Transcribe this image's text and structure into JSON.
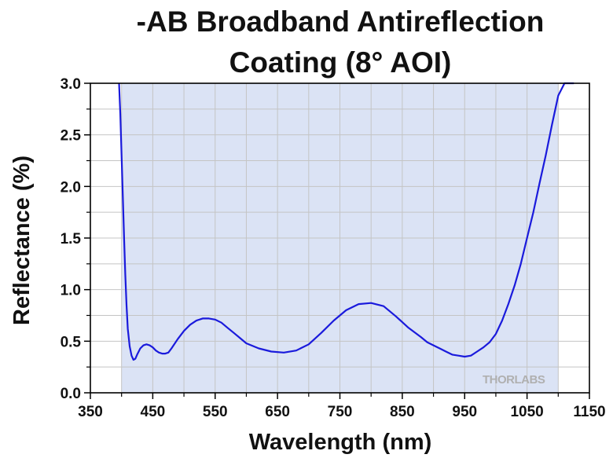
{
  "chart_data": {
    "type": "line",
    "title_lines": [
      "-AB Broadband Antireflection",
      "Coating (8° AOI)"
    ],
    "xlabel": "Wavelength (nm)",
    "ylabel": "Reflectance (%)",
    "xlim": [
      350,
      1150
    ],
    "ylim": [
      0.0,
      3.0
    ],
    "x_ticks": [
      "350",
      "450",
      "550",
      "650",
      "750",
      "850",
      "950",
      "1050",
      "1150"
    ],
    "y_ticks": [
      "0.0",
      "0.5",
      "1.0",
      "1.5",
      "2.0",
      "2.5",
      "3.0"
    ],
    "grid": true,
    "shaded_band": [
      400,
      1100
    ],
    "colors": {
      "line": "#1a1adc",
      "band": "#dbe3f5",
      "grid": "#c4c4c4"
    },
    "watermark": "THORLABS",
    "series": [
      {
        "x": [
          396,
          398,
          400,
          402,
          404,
          406,
          408,
          410,
          413,
          416,
          419,
          422,
          425,
          430,
          435,
          440,
          445,
          450,
          455,
          460,
          465,
          470,
          475,
          480,
          490,
          500,
          510,
          520,
          530,
          540,
          550,
          560,
          570,
          580,
          590,
          600,
          620,
          640,
          660,
          680,
          700,
          720,
          740,
          760,
          780,
          800,
          820,
          840,
          860,
          880,
          890,
          900,
          910,
          920,
          930,
          940,
          950,
          960,
          970,
          980,
          990,
          1000,
          1010,
          1020,
          1030,
          1040,
          1050,
          1060,
          1070,
          1080,
          1090,
          1100,
          1110,
          1120,
          1125
        ],
        "y": [
          3.0,
          2.7,
          2.3,
          1.9,
          1.5,
          1.15,
          0.85,
          0.62,
          0.45,
          0.36,
          0.32,
          0.33,
          0.37,
          0.43,
          0.46,
          0.47,
          0.46,
          0.44,
          0.41,
          0.39,
          0.38,
          0.38,
          0.39,
          0.43,
          0.52,
          0.6,
          0.66,
          0.7,
          0.72,
          0.72,
          0.71,
          0.68,
          0.63,
          0.58,
          0.53,
          0.48,
          0.43,
          0.4,
          0.39,
          0.41,
          0.47,
          0.58,
          0.7,
          0.8,
          0.86,
          0.87,
          0.84,
          0.74,
          0.63,
          0.54,
          0.49,
          0.46,
          0.43,
          0.4,
          0.37,
          0.36,
          0.35,
          0.36,
          0.4,
          0.44,
          0.49,
          0.57,
          0.7,
          0.86,
          1.04,
          1.25,
          1.5,
          1.75,
          2.03,
          2.3,
          2.6,
          2.88,
          3.0,
          3.0,
          3.0
        ]
      }
    ]
  }
}
